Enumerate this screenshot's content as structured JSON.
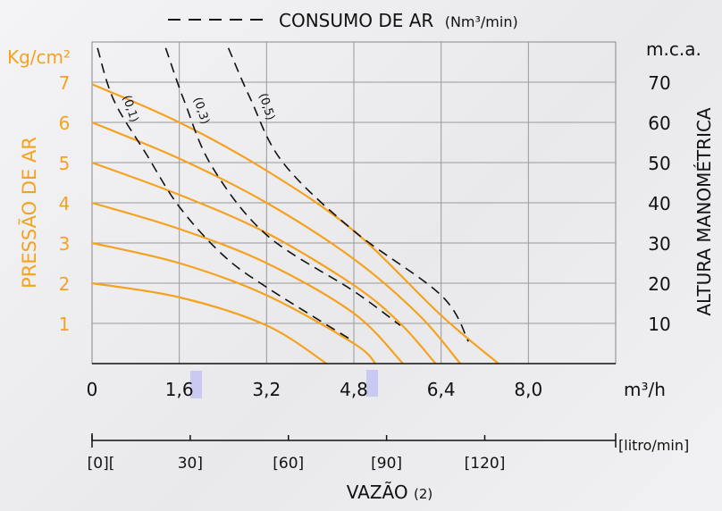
{
  "chart_data": {
    "type": "line",
    "legend": {
      "label": "CONSUMO DE AR",
      "unit": "(Nm³/min)",
      "placement": "top"
    },
    "left_axis": {
      "unit": "Kg/cm²",
      "title": "PRESSÃO DE AR",
      "ticks": [
        "1",
        "2",
        "3",
        "4",
        "5",
        "6",
        "7"
      ],
      "range": [
        0,
        8
      ]
    },
    "right_axis": {
      "unit": "m.c.a.",
      "title": "ALTURA MANOMÉTRICA",
      "ticks": [
        "10",
        "20",
        "30",
        "40",
        "50",
        "60",
        "70"
      ],
      "range": [
        0,
        80
      ]
    },
    "x_axis": {
      "unit": "m³/h",
      "ticks": [
        "0",
        "1,6",
        "3,2",
        "4,8",
        "6,4",
        "8,0"
      ],
      "tick_values": [
        0,
        1.6,
        3.2,
        4.8,
        6.4,
        8.0
      ],
      "range": [
        0,
        9.6
      ]
    },
    "secondary_x_axis": {
      "unit": "[litro/min]",
      "labels": [
        "[0][",
        "30]",
        "[60]",
        "[90]",
        "[120]"
      ],
      "label_values": [
        0,
        30,
        60,
        90,
        120
      ],
      "range": [
        0,
        160
      ]
    },
    "x_title": "VAZÃO",
    "x_title_note": "(2)",
    "grid": true,
    "pressure_curves": [
      {
        "pressure": 2,
        "points": [
          [
            0,
            2.0
          ],
          [
            1.6,
            1.65
          ],
          [
            3.2,
            0.95
          ],
          [
            4.3,
            0.0
          ]
        ]
      },
      {
        "pressure": 3,
        "points": [
          [
            0,
            3.0
          ],
          [
            1.6,
            2.5
          ],
          [
            3.2,
            1.7
          ],
          [
            4.8,
            0.5
          ],
          [
            5.2,
            0.0
          ]
        ]
      },
      {
        "pressure": 4,
        "points": [
          [
            0,
            4.0
          ],
          [
            1.6,
            3.35
          ],
          [
            3.2,
            2.5
          ],
          [
            4.8,
            1.25
          ],
          [
            5.7,
            0.0
          ]
        ]
      },
      {
        "pressure": 5,
        "points": [
          [
            0,
            5.0
          ],
          [
            1.6,
            4.2
          ],
          [
            3.2,
            3.25
          ],
          [
            4.8,
            1.95
          ],
          [
            5.65,
            1.0
          ],
          [
            6.3,
            0.0
          ]
        ]
      },
      {
        "pressure": 6,
        "points": [
          [
            0,
            6.0
          ],
          [
            1.6,
            5.1
          ],
          [
            3.2,
            4.0
          ],
          [
            4.8,
            2.6
          ],
          [
            6.0,
            1.2
          ],
          [
            6.75,
            0.0
          ]
        ]
      },
      {
        "pressure": 7,
        "points": [
          [
            0,
            6.95
          ],
          [
            1.6,
            6.0
          ],
          [
            3.2,
            4.8
          ],
          [
            4.8,
            3.3
          ],
          [
            6.4,
            1.2
          ],
          [
            7.45,
            0.0
          ]
        ]
      }
    ],
    "air_consumption_curves": [
      {
        "label": "(0,1)",
        "points": [
          [
            0.1,
            7.85
          ],
          [
            0.4,
            6.55
          ],
          [
            1.0,
            5.2
          ],
          [
            1.6,
            3.9
          ],
          [
            2.4,
            2.7
          ],
          [
            3.2,
            1.9
          ],
          [
            4.8,
            0.55
          ]
        ]
      },
      {
        "label": "(0,3)",
        "points": [
          [
            1.35,
            7.85
          ],
          [
            1.7,
            6.5
          ],
          [
            2.2,
            4.9
          ],
          [
            3.2,
            3.2
          ],
          [
            4.8,
            1.8
          ],
          [
            5.65,
            0.95
          ]
        ]
      },
      {
        "label": "(0,5)",
        "points": [
          [
            2.5,
            7.85
          ],
          [
            2.9,
            6.6
          ],
          [
            3.5,
            5.0
          ],
          [
            4.8,
            3.3
          ],
          [
            6.4,
            1.7
          ],
          [
            6.9,
            0.55
          ]
        ]
      }
    ]
  },
  "colors": {
    "pressure_curves": "#f4a21f",
    "left_axis_text": "#f4a21f",
    "dashed": "#111111",
    "grid": "#999999",
    "highlight": "#c9c9f2"
  }
}
